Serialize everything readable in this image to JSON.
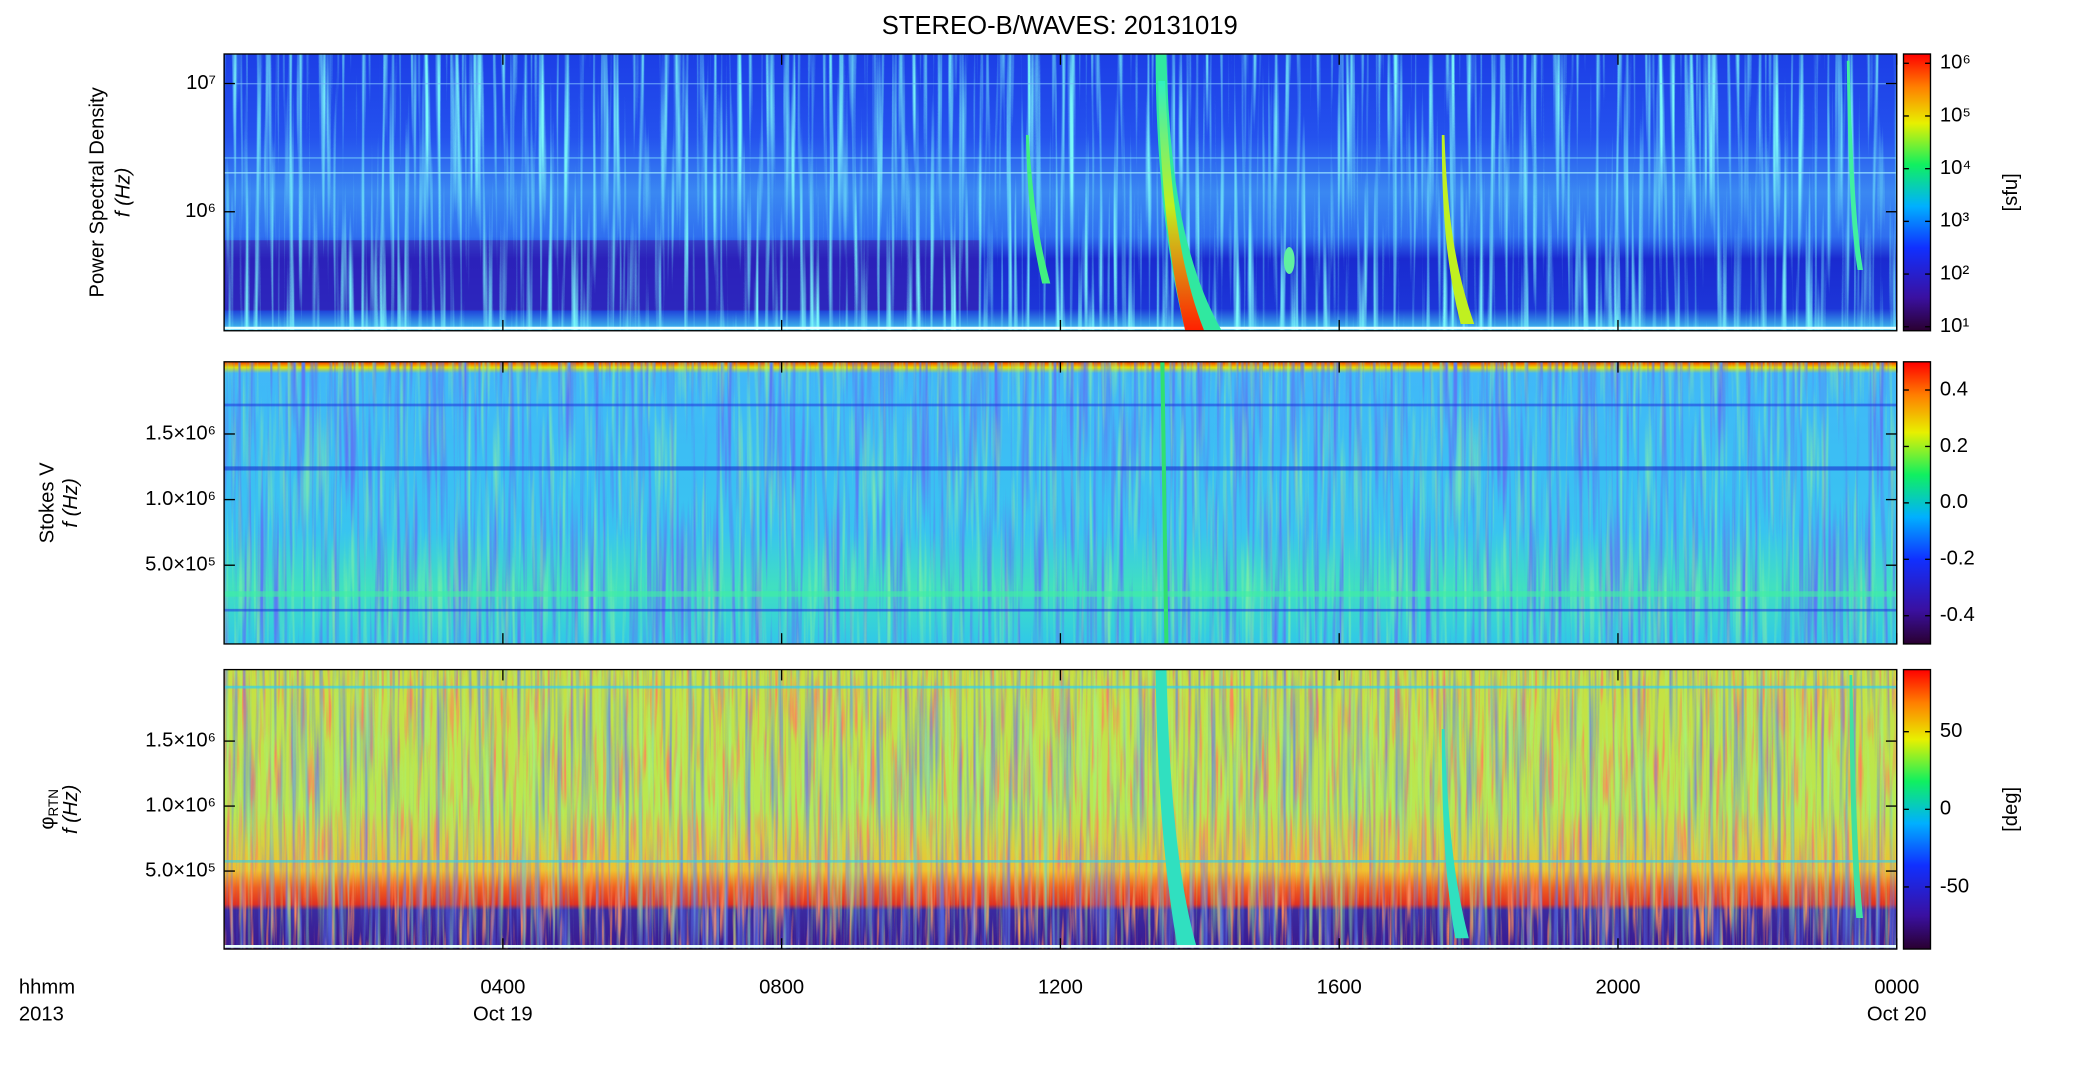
{
  "title": "STEREO-B/WAVES: 20131019",
  "corner_labels": [
    "hhmm",
    "2013"
  ],
  "chart_data": [
    {
      "type": "spectrogram",
      "ylabel": "Power Spectral Density",
      "ylabel2": "f (Hz)",
      "ylog": true,
      "ylim": [
        118000,
        17000000
      ],
      "yticks": [
        {
          "value": 1000000,
          "label": "10⁶"
        },
        {
          "value": 10000000,
          "label": "10⁷"
        }
      ],
      "colorbar": {
        "log": true,
        "lim": [
          8.4,
          1500000
        ],
        "ticks": [
          {
            "value": 10,
            "label": "10¹"
          },
          {
            "value": 100,
            "label": "10²"
          },
          {
            "value": 1000,
            "label": "10³"
          },
          {
            "value": 10000,
            "label": "10⁴"
          },
          {
            "value": 100000,
            "label": "10⁵"
          },
          {
            "value": 1000000,
            "label": "10⁶"
          }
        ],
        "label": "[sfu]"
      }
    },
    {
      "type": "spectrogram",
      "ylabel": "Stokes V",
      "ylabel2": "f (Hz)",
      "ylog": false,
      "ylim": [
        -100000,
        2050000
      ],
      "yticks": [
        {
          "value": 500000,
          "label": "5.0×10⁵"
        },
        {
          "value": 1000000,
          "label": "1.0×10⁶"
        },
        {
          "value": 1500000,
          "label": "1.5×10⁶"
        }
      ],
      "colorbar": {
        "log": false,
        "lim": [
          -0.5,
          0.5
        ],
        "ticks": [
          -0.4,
          -0.2,
          {
            "value": 0,
            "label": "0.0"
          },
          0.2,
          0.4
        ]
      }
    },
    {
      "type": "spectrogram",
      "ylabel": "φ",
      "ylabel_sub": "RTN",
      "ylabel2": "f (Hz)",
      "ylog": false,
      "ylim": [
        -100000,
        2050000
      ],
      "yticks": [
        {
          "value": 500000,
          "label": "5.0×10⁵"
        },
        {
          "value": 1000000,
          "label": "1.0×10⁶"
        },
        {
          "value": 1500000,
          "label": "1.5×10⁶"
        }
      ],
      "colorbar": {
        "log": false,
        "lim": [
          -90,
          90
        ],
        "ticks": [
          -50,
          0,
          50
        ],
        "label": "[deg]"
      },
      "xlim": [
        0,
        24
      ],
      "xticks": [
        {
          "value": 4,
          "label": "0400"
        },
        {
          "value": 8,
          "label": "0800"
        },
        {
          "value": 12,
          "label": "1200"
        },
        {
          "value": 16,
          "label": "1600"
        },
        {
          "value": 20,
          "label": "2000"
        },
        {
          "value": 24,
          "label": "0000"
        }
      ],
      "xtick_dates": [
        {
          "value": 4,
          "label": "Oct 19"
        },
        {
          "value": 24,
          "label": "Oct 20"
        }
      ]
    }
  ]
}
